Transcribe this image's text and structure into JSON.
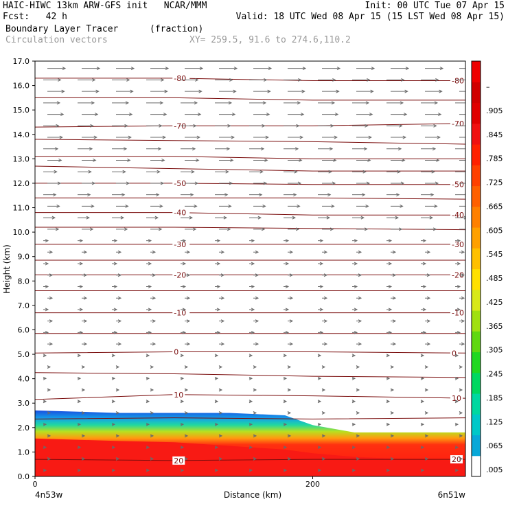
{
  "header": {
    "model": "HAIC-HIWC 13km ARW-GFS init   NCAR/MMM",
    "init": "Init: 00 UTC Tue 07 Apr 15",
    "fcst": "Fcst:   42 h",
    "valid": "Valid: 18 UTC Wed 08 Apr 15 (15 LST Wed 08 Apr 15)",
    "field": "Boundary Layer Tracer",
    "units": "(fraction)",
    "vectors": "Circulation vectors",
    "xy": "XY= 259.5, 91.6 to 274.6,110.2"
  },
  "chart_data": {
    "type": "cross-section (filled contour + line contours + vectors)",
    "ylabel": "Height (km)",
    "xlabel": "Distance (km)",
    "ylim": [
      0,
      17
    ],
    "yticks": [
      "0.0",
      "1.0",
      "2.0",
      "3.0",
      "4.0",
      "5.0",
      "6.0",
      "7.0",
      "8.0",
      "9.0",
      "10.0",
      "11.0",
      "12.0",
      "13.0",
      "14.0",
      "15.0",
      "16.0",
      "17.0"
    ],
    "xlim": [
      0,
      310
    ],
    "xticks": [
      {
        "value": 0,
        "label": "0"
      },
      {
        "value": 200,
        "label": "200"
      }
    ],
    "left_endpoint": "4n53w",
    "right_endpoint": "6n51w",
    "colorbar": {
      "levels": [
        ".005",
        ".065",
        ".125",
        ".185",
        ".245",
        ".305",
        ".365",
        ".425",
        ".485",
        ".545",
        ".605",
        ".665",
        ".725",
        ".785",
        ".845",
        ".905",
        "–"
      ],
      "colors": [
        "#ffffff",
        "#08a8d8",
        "#00c8c8",
        "#00d8a0",
        "#00d860",
        "#20d820",
        "#60d810",
        "#a0e010",
        "#d8e818",
        "#ffe000",
        "#ffc000",
        "#ffa000",
        "#ff8000",
        "#ff6000",
        "#ff4000",
        "#ff2000",
        "#f01010",
        "#e00000",
        "#d00000",
        "#ee0000"
      ]
    },
    "tracer_layer_top_km": [
      {
        "x": 0,
        "top": 2.7,
        "core": 1.85
      },
      {
        "x": 60,
        "top": 2.6,
        "core": 1.75
      },
      {
        "x": 100,
        "top": 2.6,
        "core": 1.7
      },
      {
        "x": 140,
        "top": 2.6,
        "core": 1.55
      },
      {
        "x": 180,
        "top": 2.5,
        "core": 1.4
      },
      {
        "x": 200,
        "top": 2.1,
        "core": 1.25
      },
      {
        "x": 230,
        "top": 1.8,
        "core": 1.1
      },
      {
        "x": 270,
        "top": 1.8,
        "core": 1.0
      },
      {
        "x": 310,
        "top": 1.8,
        "core": 0.95
      }
    ],
    "contours": [
      {
        "label": "-80",
        "y": [
          16.3,
          16.3,
          16.2,
          16.2
        ]
      },
      {
        "label": "",
        "y": [
          15.5,
          15.5,
          15.4,
          15.4
        ]
      },
      {
        "label": "-70",
        "y": [
          14.3,
          14.35,
          14.35,
          14.45
        ]
      },
      {
        "label": "",
        "y": [
          13.8,
          13.75,
          13.7,
          13.6
        ]
      },
      {
        "label": "",
        "y": [
          13.1,
          13.1,
          13.0,
          13.0
        ]
      },
      {
        "label": "",
        "y": [
          12.7,
          12.6,
          12.5,
          12.5
        ]
      },
      {
        "label": "-50",
        "y": [
          12.0,
          12.0,
          11.95,
          11.95
        ]
      },
      {
        "label": "",
        "y": [
          11.4,
          11.4,
          11.4,
          11.35
        ]
      },
      {
        "label": "-40",
        "y": [
          10.8,
          10.8,
          10.7,
          10.7
        ]
      },
      {
        "label": "",
        "y": [
          10.2,
          10.2,
          10.15,
          10.1
        ]
      },
      {
        "label": "-30",
        "y": [
          9.5,
          9.5,
          9.5,
          9.5
        ]
      },
      {
        "label": "",
        "y": [
          8.85,
          8.85,
          8.85,
          8.85
        ]
      },
      {
        "label": "-20",
        "y": [
          8.25,
          8.25,
          8.25,
          8.25
        ]
      },
      {
        "label": "",
        "y": [
          7.6,
          7.6,
          7.6,
          7.6
        ]
      },
      {
        "label": "-10",
        "y": [
          6.7,
          6.7,
          6.7,
          6.7
        ]
      },
      {
        "label": "",
        "y": [
          5.85,
          5.85,
          5.85,
          5.85
        ]
      },
      {
        "label": "0",
        "y": [
          5.05,
          5.1,
          5.1,
          5.05
        ]
      },
      {
        "label": "",
        "y": [
          4.25,
          4.2,
          4.1,
          4.05
        ]
      },
      {
        "label": "10",
        "y": [
          3.15,
          3.35,
          3.3,
          3.2
        ]
      },
      {
        "label": "",
        "y": [
          2.35,
          2.4,
          2.35,
          2.4
        ]
      },
      {
        "label": "20",
        "y": [
          0.7,
          0.65,
          0.7,
          0.7
        ]
      }
    ]
  }
}
